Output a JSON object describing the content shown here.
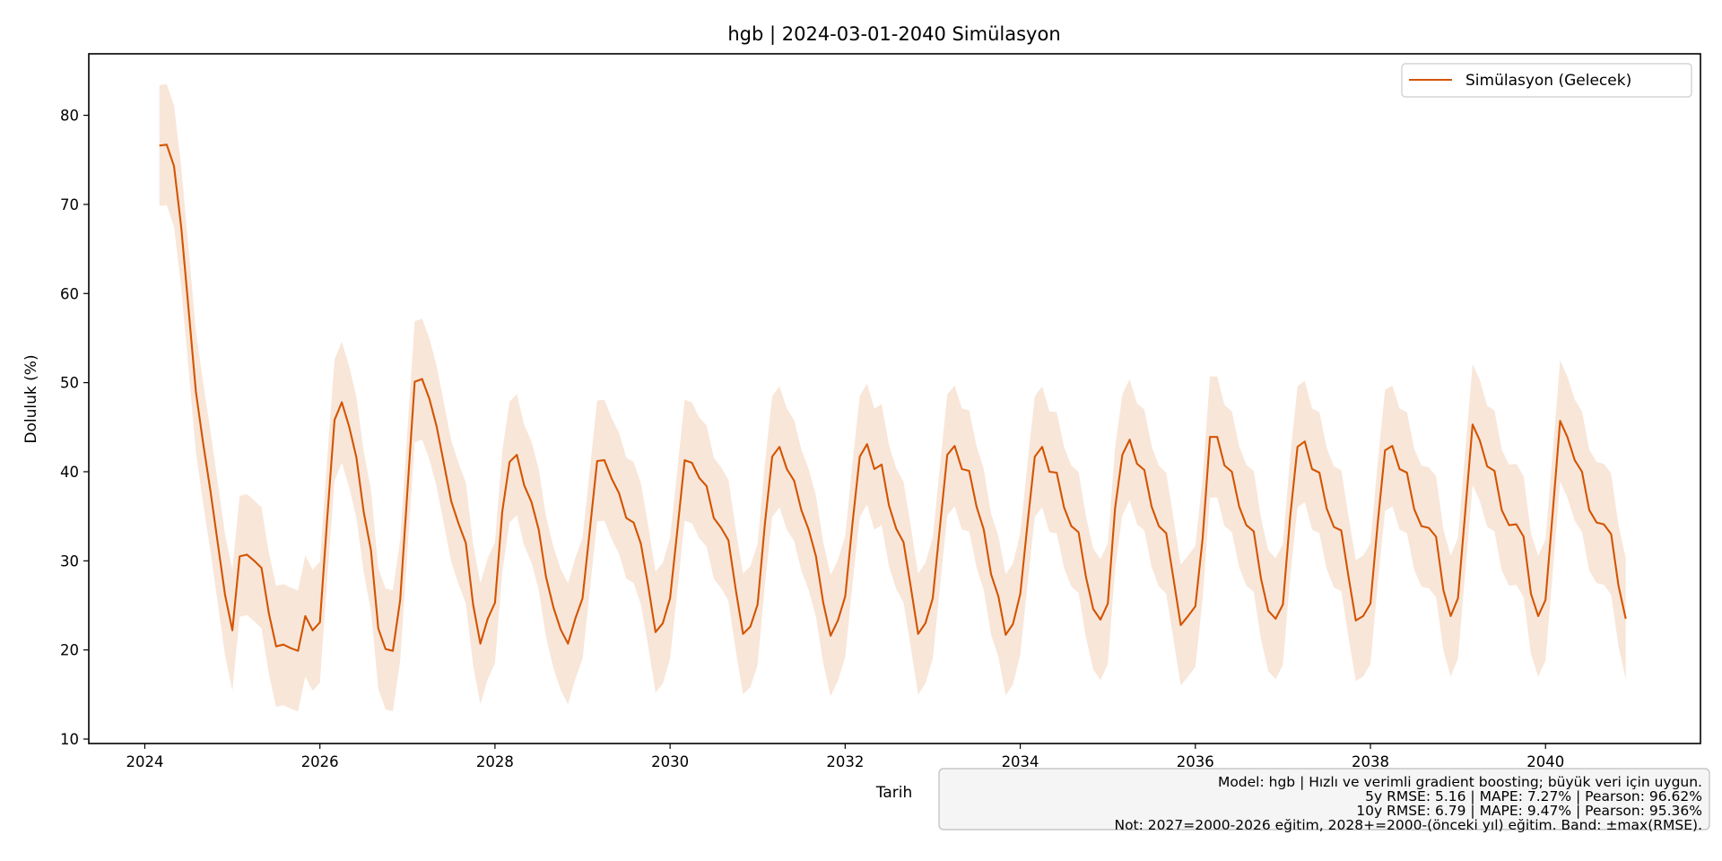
{
  "chart_data": {
    "type": "line",
    "title": "hgb | 2024-03-01-2040 Simülasyon",
    "xlabel": "Tarih",
    "ylabel": "Doluluk (%)",
    "xlim": [
      2023.36,
      2041.77
    ],
    "ylim": [
      9.5,
      86.9
    ],
    "xticks": [
      "2024",
      "2026",
      "2028",
      "2030",
      "2032",
      "2034",
      "2036",
      "2038",
      "2040"
    ],
    "yticks": [
      "10",
      "20",
      "30",
      "40",
      "50",
      "60",
      "70",
      "80"
    ],
    "grid": false,
    "legend": {
      "position": "top-right",
      "entries": [
        "Simülasyon (Gelecek)"
      ]
    },
    "colors": {
      "line": "#d35400",
      "band": "#d35400",
      "band_opacity": 0.15
    },
    "band_halfwidth": 6.79,
    "series": [
      {
        "name": "Simülasyon (Gelecek)",
        "x": [
          "2024-03",
          "2024-04",
          "2024-05",
          "2024-06",
          "2024-07",
          "2024-08",
          "2024-09",
          "2024-10",
          "2024-11",
          "2024-12",
          "2025-01",
          "2025-02",
          "2025-03",
          "2025-04",
          "2025-05",
          "2025-06",
          "2025-07",
          "2025-08",
          "2025-09",
          "2025-10",
          "2025-11",
          "2025-12",
          "2026-01",
          "2026-02",
          "2026-03",
          "2026-04",
          "2026-05",
          "2026-06",
          "2026-07",
          "2026-08",
          "2026-09",
          "2026-10",
          "2026-11",
          "2026-12",
          "2027-01",
          "2027-02",
          "2027-03",
          "2027-04",
          "2027-05",
          "2027-06",
          "2027-07",
          "2027-08",
          "2027-09",
          "2027-10",
          "2027-11",
          "2027-12",
          "2028-01",
          "2028-02",
          "2028-03",
          "2028-04",
          "2028-05",
          "2028-06",
          "2028-07",
          "2028-08",
          "2028-09",
          "2028-10",
          "2028-11",
          "2028-12",
          "2029-01",
          "2029-02",
          "2029-03",
          "2029-04",
          "2029-05",
          "2029-06",
          "2029-07",
          "2029-08",
          "2029-09",
          "2029-10",
          "2029-11",
          "2029-12",
          "2030-01",
          "2030-02",
          "2030-03",
          "2030-04",
          "2030-05",
          "2030-06",
          "2030-07",
          "2030-08",
          "2030-09",
          "2030-10",
          "2030-11",
          "2030-12",
          "2031-01",
          "2031-02",
          "2031-03",
          "2031-04",
          "2031-05",
          "2031-06",
          "2031-07",
          "2031-08",
          "2031-09",
          "2031-10",
          "2031-11",
          "2031-12",
          "2032-01",
          "2032-02",
          "2032-03",
          "2032-04",
          "2032-05",
          "2032-06",
          "2032-07",
          "2032-08",
          "2032-09",
          "2032-10",
          "2032-11",
          "2032-12",
          "2033-01",
          "2033-02",
          "2033-03",
          "2033-04",
          "2033-05",
          "2033-06",
          "2033-07",
          "2033-08",
          "2033-09",
          "2033-10",
          "2033-11",
          "2033-12",
          "2034-01",
          "2034-02",
          "2034-03",
          "2034-04",
          "2034-05",
          "2034-06",
          "2034-07",
          "2034-08",
          "2034-09",
          "2034-10",
          "2034-11",
          "2034-12",
          "2035-01",
          "2035-02",
          "2035-03",
          "2035-04",
          "2035-05",
          "2035-06",
          "2035-07",
          "2035-08",
          "2035-09",
          "2035-10",
          "2035-11",
          "2035-12",
          "2036-01",
          "2036-02",
          "2036-03",
          "2036-04",
          "2036-05",
          "2036-06",
          "2036-07",
          "2036-08",
          "2036-09",
          "2036-10",
          "2036-11",
          "2036-12",
          "2037-01",
          "2037-02",
          "2037-03",
          "2037-04",
          "2037-05",
          "2037-06",
          "2037-07",
          "2037-08",
          "2037-09",
          "2037-10",
          "2037-11",
          "2037-12",
          "2038-01",
          "2038-02",
          "2038-03",
          "2038-04",
          "2038-05",
          "2038-06",
          "2038-07",
          "2038-08",
          "2038-09",
          "2038-10",
          "2038-11",
          "2038-12",
          "2039-01",
          "2039-02",
          "2039-03",
          "2039-04",
          "2039-05",
          "2039-06",
          "2039-07",
          "2039-08",
          "2039-09",
          "2039-10",
          "2039-11",
          "2039-12",
          "2040-01",
          "2040-02",
          "2040-03",
          "2040-04",
          "2040-05",
          "2040-06",
          "2040-07",
          "2040-08",
          "2040-09",
          "2040-10",
          "2040-11",
          "2040-12"
        ],
        "y": [
          76.6,
          76.7,
          74.3,
          67.4,
          58.2,
          49.0,
          43.2,
          37.8,
          32.0,
          26.2,
          22.2,
          30.5,
          30.7,
          30.0,
          29.2,
          24.1,
          20.4,
          20.6,
          20.2,
          19.9,
          23.8,
          22.2,
          23.1,
          34.7,
          45.8,
          47.8,
          45.1,
          41.6,
          35.5,
          31.2,
          22.4,
          20.1,
          19.9,
          25.6,
          37.9,
          50.1,
          50.4,
          48.2,
          45.1,
          40.9,
          36.7,
          34.2,
          32.0,
          25.1,
          20.7,
          23.5,
          25.3,
          35.5,
          41.1,
          41.9,
          38.5,
          36.6,
          33.5,
          28.2,
          24.8,
          22.3,
          20.7,
          23.5,
          25.8,
          33.5,
          41.2,
          41.3,
          39.2,
          37.6,
          34.8,
          34.3,
          31.9,
          27.2,
          22.0,
          23.0,
          25.8,
          33.5,
          41.3,
          41.0,
          39.3,
          38.4,
          34.8,
          33.7,
          32.3,
          26.8,
          21.8,
          22.6,
          25.1,
          34.2,
          41.7,
          42.8,
          40.3,
          39.0,
          35.7,
          33.5,
          30.5,
          25.3,
          21.6,
          23.3,
          26.0,
          34.2,
          41.7,
          43.1,
          40.3,
          40.8,
          36.2,
          33.6,
          32.1,
          27.0,
          21.8,
          23.0,
          25.8,
          33.9,
          41.9,
          42.9,
          40.3,
          40.1,
          36.1,
          33.5,
          28.5,
          26.0,
          21.7,
          22.9,
          26.3,
          34.2,
          41.7,
          42.8,
          40.0,
          39.9,
          36.0,
          33.9,
          33.2,
          28.2,
          24.6,
          23.4,
          25.2,
          35.9,
          41.9,
          43.6,
          40.9,
          40.2,
          36.1,
          33.9,
          33.1,
          28.0,
          22.8,
          23.8,
          24.9,
          32.5,
          43.9,
          43.9,
          40.7,
          40.0,
          36.1,
          34.0,
          33.3,
          28.0,
          24.4,
          23.5,
          25.1,
          34.9,
          42.8,
          43.4,
          40.3,
          39.9,
          35.9,
          33.8,
          33.4,
          28.2,
          23.3,
          23.8,
          25.2,
          34.2,
          42.4,
          42.9,
          40.3,
          39.9,
          35.8,
          33.9,
          33.7,
          32.7,
          26.7,
          23.8,
          25.8,
          35.6,
          45.3,
          43.5,
          40.6,
          40.1,
          35.7,
          34.0,
          34.1,
          32.7,
          26.3,
          23.8,
          25.6,
          35.6,
          45.7,
          43.9,
          41.3,
          40.0,
          35.7,
          34.3,
          34.1,
          33.0,
          27.2,
          23.5
        ]
      }
    ],
    "annotation": {
      "lines": [
        "Model: hgb | Hızlı ve verimli gradient boosting; büyük veri için uygun.",
        "5y RMSE: 5.16 | MAPE: 7.27% | Pearson: 96.62%",
        "10y RMSE: 6.79 | MAPE: 9.47% | Pearson: 95.36%",
        "Not: 2027=2000-2026 eğitim, 2028+=2000-(önceki yıl) eğitim. Band: ±max(RMSE)."
      ]
    }
  }
}
